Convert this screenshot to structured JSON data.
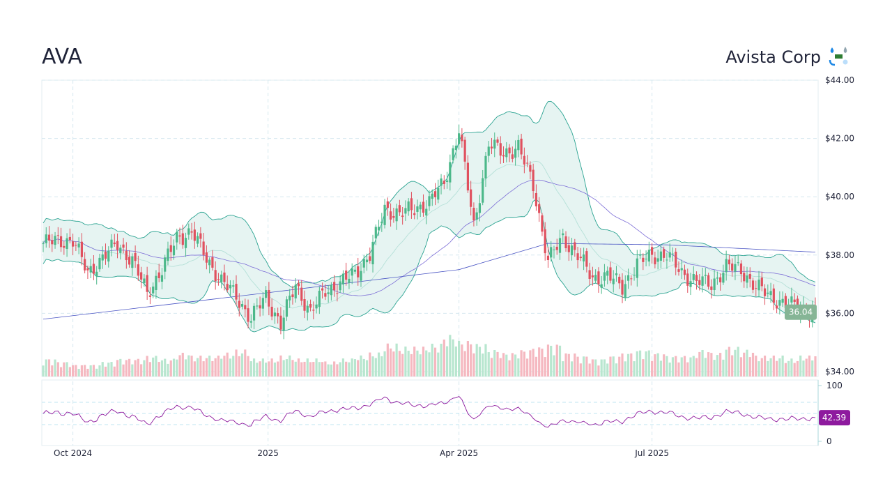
{
  "header": {
    "ticker": "AVA",
    "company": "Avista Corp",
    "logo_icon": "utility-logo-icon"
  },
  "colors": {
    "up": "#4cb88a",
    "down": "#e0515f",
    "band_fill": "#e6f4f2",
    "band_line": "#2aa391",
    "ma_fast": "#7b6cd6",
    "ma_slow": "#4a55c4",
    "rsi": "#8e1a9e",
    "price_tag": "#86b596",
    "grid": "#d6e8ef"
  },
  "chart_data": {
    "type": "candlestick",
    "price_axis": {
      "ticks": [
        "$44.00",
        "$42.00",
        "$40.00",
        "$38.00",
        "$36.00",
        "$34.00"
      ],
      "values": [
        44,
        42,
        40,
        38,
        36,
        34
      ],
      "ylim": [
        34,
        44
      ]
    },
    "x_ticks": [
      {
        "label": "Oct 2024",
        "date": "2024-10-01"
      },
      {
        "label": "2025",
        "date": "2025-01-01"
      },
      {
        "label": "Apr 2025",
        "date": "2025-04-01"
      },
      {
        "label": "Jul 2025",
        "date": "2025-07-01"
      }
    ],
    "date_range": [
      "2024-09-17",
      "2025-09-16"
    ],
    "weekly_closes": [
      38.4,
      38.5,
      38.5,
      37.4,
      37.9,
      38.4,
      37.8,
      36.7,
      37.5,
      38.6,
      38.8,
      37.9,
      37.1,
      36.6,
      35.8,
      36.6,
      35.6,
      37.0,
      36.0,
      36.8,
      37.0,
      37.4,
      38.0,
      39.6,
      39.4,
      39.6,
      39.8,
      40.5,
      42.3,
      39.0,
      41.8,
      41.5,
      41.7,
      40.4,
      37.8,
      38.6,
      38.0,
      37.2,
      37.3,
      36.9,
      37.7,
      38.0,
      38.0,
      37.4,
      37.1,
      37.0,
      37.6,
      37.5,
      36.9,
      36.6,
      36.3,
      36.2,
      36.04
    ],
    "ma_slow_points": [
      [
        0,
        35.8
      ],
      [
        15,
        36.7
      ],
      [
        28,
        37.5
      ],
      [
        34,
        38.4
      ],
      [
        42,
        38.35
      ],
      [
        52,
        38.1
      ]
    ],
    "weekly_volume_relative": [
      0.3,
      0.25,
      0.2,
      0.2,
      0.25,
      0.3,
      0.3,
      0.35,
      0.3,
      0.4,
      0.35,
      0.35,
      0.4,
      0.45,
      0.3,
      0.3,
      0.35,
      0.3,
      0.3,
      0.25,
      0.3,
      0.35,
      0.4,
      0.55,
      0.5,
      0.5,
      0.55,
      0.7,
      0.6,
      0.55,
      0.45,
      0.4,
      0.45,
      0.5,
      0.55,
      0.4,
      0.35,
      0.3,
      0.35,
      0.4,
      0.45,
      0.4,
      0.35,
      0.35,
      0.45,
      0.4,
      0.5,
      0.45,
      0.35,
      0.35,
      0.3,
      0.35,
      0.4
    ],
    "last_price": "36.04",
    "rsi": {
      "ticks": [
        "100",
        "0"
      ],
      "levels": [
        70,
        50,
        30
      ],
      "last": "42.39"
    }
  }
}
